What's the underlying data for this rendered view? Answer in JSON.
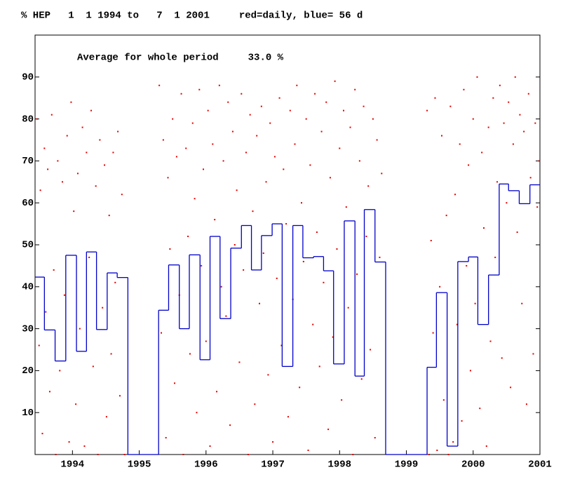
{
  "chart_data": {
    "type": "scatter",
    "title": "% HEP   1  1 1994 to   7  1 2001     red=daily, blue= 56 d",
    "annotation": "Average for whole period     33.0 %",
    "xlim": [
      1993.44,
      2001
    ],
    "ylim": [
      0,
      100
    ],
    "xticks": [
      1994,
      1995,
      1996,
      1997,
      1998,
      1999,
      2000,
      2001
    ],
    "yticks": [
      10,
      20,
      30,
      40,
      50,
      60,
      70,
      80,
      90
    ],
    "series": [
      {
        "type": "scatter",
        "color": "#e00000",
        "x": [
          1993.47,
          1993.5,
          1993.52,
          1993.55,
          1993.58,
          1993.6,
          1993.63,
          1993.66,
          1993.69,
          1993.72,
          1993.75,
          1993.78,
          1993.81,
          1993.85,
          1993.88,
          1993.92,
          1993.95,
          1993.98,
          1994.02,
          1994.05,
          1994.08,
          1994.11,
          1994.15,
          1994.18,
          1994.21,
          1994.25,
          1994.28,
          1994.31,
          1994.35,
          1994.38,
          1994.41,
          1994.45,
          1994.48,
          1994.51,
          1994.55,
          1994.58,
          1994.61,
          1994.64,
          1994.68,
          1994.71,
          1994.74,
          1994.78,
          1995.3,
          1995.33,
          1995.36,
          1995.4,
          1995.43,
          1995.46,
          1995.5,
          1995.53,
          1995.56,
          1995.6,
          1995.63,
          1995.66,
          1995.7,
          1995.73,
          1995.76,
          1995.8,
          1995.83,
          1995.86,
          1995.9,
          1995.93,
          1995.96,
          1996.0,
          1996.03,
          1996.06,
          1996.1,
          1996.13,
          1996.16,
          1996.2,
          1996.23,
          1996.26,
          1996.3,
          1996.33,
          1996.36,
          1996.4,
          1996.43,
          1996.46,
          1996.5,
          1996.53,
          1996.56,
          1996.6,
          1996.63,
          1996.66,
          1996.7,
          1996.73,
          1996.76,
          1996.8,
          1996.83,
          1996.86,
          1996.9,
          1996.93,
          1996.96,
          1997.0,
          1997.03,
          1997.06,
          1997.1,
          1997.13,
          1997.16,
          1997.2,
          1997.23,
          1997.26,
          1997.3,
          1997.33,
          1997.36,
          1997.4,
          1997.43,
          1997.46,
          1997.5,
          1997.53,
          1997.56,
          1997.6,
          1997.63,
          1997.66,
          1997.7,
          1997.73,
          1997.76,
          1997.8,
          1997.83,
          1997.86,
          1997.9,
          1997.93,
          1997.96,
          1998.0,
          1998.03,
          1998.06,
          1998.1,
          1998.13,
          1998.16,
          1998.2,
          1998.23,
          1998.26,
          1998.3,
          1998.33,
          1998.36,
          1998.4,
          1998.43,
          1998.46,
          1998.5,
          1998.53,
          1998.56,
          1998.6,
          1998.63,
          1999.31,
          1999.34,
          1999.37,
          1999.4,
          1999.43,
          1999.46,
          1999.5,
          1999.53,
          1999.56,
          1999.6,
          1999.63,
          1999.66,
          1999.7,
          1999.73,
          1999.76,
          1999.8,
          1999.83,
          1999.86,
          1999.9,
          1999.93,
          1999.96,
          2000.0,
          2000.03,
          2000.06,
          2000.1,
          2000.13,
          2000.16,
          2000.2,
          2000.23,
          2000.26,
          2000.3,
          2000.33,
          2000.36,
          2000.4,
          2000.43,
          2000.46,
          2000.5,
          2000.53,
          2000.56,
          2000.6,
          2000.63,
          2000.66,
          2000.7,
          2000.73,
          2000.76,
          2000.8,
          2000.83,
          2000.86,
          2000.9,
          2000.93,
          2000.96,
          2000.99
        ],
        "values": [
          80,
          26,
          63,
          5,
          73,
          34,
          68,
          15,
          81,
          44,
          0,
          70,
          20,
          65,
          38,
          76,
          3,
          84,
          58,
          12,
          67,
          30,
          78,
          2,
          72,
          47,
          82,
          21,
          64,
          0,
          75,
          35,
          69,
          9,
          57,
          24,
          72,
          41,
          77,
          14,
          62,
          0,
          88,
          29,
          75,
          4,
          66,
          49,
          80,
          17,
          71,
          38,
          86,
          0,
          73,
          52,
          24,
          79,
          61,
          10,
          87,
          45,
          68,
          27,
          82,
          2,
          74,
          56,
          15,
          88,
          40,
          70,
          33,
          84,
          7,
          77,
          50,
          63,
          22,
          86,
          44,
          72,
          0,
          81,
          58,
          12,
          76,
          36,
          83,
          48,
          65,
          19,
          79,
          3,
          71,
          42,
          85,
          26,
          68,
          55,
          9,
          82,
          37,
          74,
          88,
          16,
          60,
          46,
          80,
          1,
          69,
          31,
          86,
          53,
          21,
          77,
          41,
          84,
          6,
          66,
          28,
          89,
          49,
          73,
          13,
          82,
          59,
          35,
          78,
          0,
          87,
          43,
          70,
          18,
          83,
          52,
          64,
          25,
          80,
          4,
          75,
          47,
          67,
          82,
          0,
          51,
          29,
          85,
          1,
          40,
          76,
          13,
          57,
          0,
          83,
          3,
          62,
          31,
          74,
          8,
          87,
          45,
          69,
          20,
          80,
          36,
          90,
          11,
          72,
          54,
          2,
          78,
          27,
          85,
          47,
          65,
          88,
          23,
          79,
          60,
          84,
          16,
          74,
          90,
          53,
          81,
          36,
          77,
          12,
          86,
          66,
          24,
          79,
          59,
          70
        ]
      },
      {
        "type": "step",
        "color": "#0000c8",
        "x": [
          1993.44,
          1993.58,
          1993.74,
          1993.9,
          1994.06,
          1994.21,
          1994.36,
          1994.52,
          1994.67,
          1994.83,
          1995.29,
          1995.44,
          1995.6,
          1995.75,
          1995.91,
          1996.06,
          1996.21,
          1996.37,
          1996.53,
          1996.68,
          1996.83,
          1996.99,
          1997.14,
          1997.3,
          1997.45,
          1997.61,
          1997.76,
          1997.91,
          1998.07,
          1998.23,
          1998.37,
          1998.53,
          1998.69,
          1999.31,
          1999.45,
          1999.61,
          1999.77,
          1999.93,
          2000.07,
          2000.23,
          2000.39,
          2000.53,
          2000.69,
          2000.85
        ],
        "values": [
          42.3,
          29.7,
          22.3,
          47.5,
          24.6,
          48.3,
          29.8,
          43.3,
          42.2,
          0,
          34.4,
          45.2,
          30,
          47.6,
          22.6,
          52,
          32.4,
          49.2,
          54.6,
          44,
          52.2,
          55,
          21,
          54.6,
          46.9,
          47.2,
          43.8,
          21.6,
          55.7,
          18.7,
          58.4,
          45.9,
          0,
          20.8,
          38.6,
          2,
          46,
          47.1,
          31,
          42.8,
          64.5,
          62.9,
          59.8,
          64.3
        ]
      }
    ]
  }
}
